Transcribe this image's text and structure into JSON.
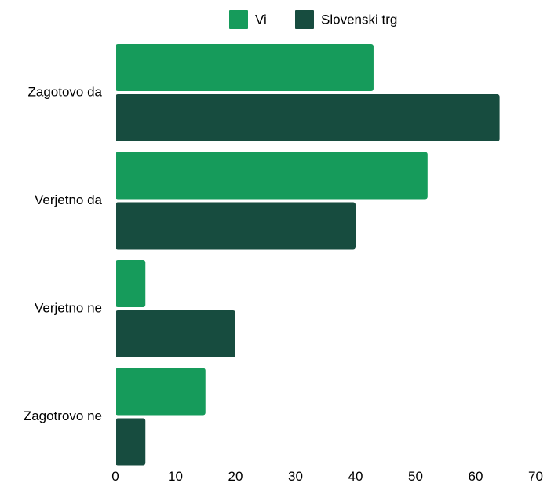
{
  "chart_data": {
    "type": "bar",
    "orientation": "horizontal",
    "categories": [
      "Zagotovo da",
      "Verjetno da",
      "Verjetno ne",
      "Zagotrovo ne"
    ],
    "series": [
      {
        "name": "Vi",
        "values": [
          43,
          52,
          5,
          15
        ],
        "color": "#169b5b"
      },
      {
        "name": "Slovenski trg",
        "values": [
          64,
          40,
          20,
          5
        ],
        "color": "#174c3f"
      }
    ],
    "xlim": [
      0,
      70
    ],
    "xticks": [
      "0",
      "10",
      "20",
      "30",
      "40",
      "50",
      "60",
      "70"
    ],
    "title": "",
    "xlabel": "",
    "ylabel": "",
    "grid": false,
    "legend_position": "top"
  }
}
